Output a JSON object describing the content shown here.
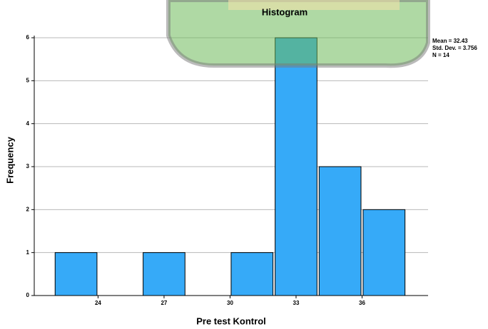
{
  "chart_data": {
    "type": "histogram",
    "title": "Histogram",
    "x_label": "Pre test Kontrol",
    "y_label": "Frequency",
    "bins": [
      22,
      24,
      26,
      28,
      30,
      32,
      34,
      36,
      38
    ],
    "values": [
      1,
      0,
      1,
      0,
      1,
      6,
      3,
      2
    ],
    "color": "#36aaf8",
    "xlim": [
      21.1,
      39.0
    ],
    "xticks": [
      24,
      27,
      30,
      33,
      36
    ],
    "ylim": [
      0,
      6.05
    ],
    "yticks": [
      0,
      1,
      2,
      3,
      4,
      5,
      6
    ],
    "grid": true,
    "annotations": [
      "Mean = 32.43",
      "Std. Dev. = 3.756",
      "N = 14"
    ]
  }
}
